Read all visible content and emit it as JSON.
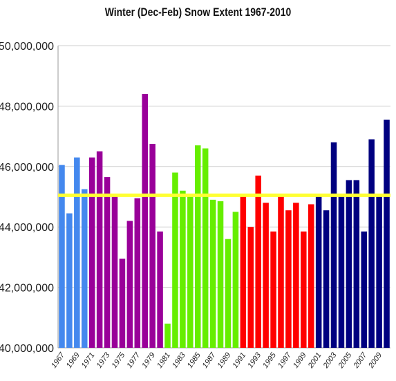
{
  "chart_data": {
    "type": "bar",
    "title": "Winter (Dec-Feb) Snow Extent 1967-2010",
    "xlabel": "",
    "ylabel": "",
    "ylim": [
      40000000,
      50000000
    ],
    "yticks": [
      40000000,
      42000000,
      44000000,
      46000000,
      48000000,
      50000000
    ],
    "ytick_labels": [
      "40,000,000",
      "42,000,000",
      "44,000,000",
      "46,000,000",
      "48,000,000",
      "50,000,000"
    ],
    "grid": true,
    "legend": "none",
    "categories": [
      "1967",
      "1968",
      "1969",
      "1970",
      "1971",
      "1972",
      "1973",
      "1974",
      "1975",
      "1976",
      "1977",
      "1978",
      "1979",
      "1980",
      "1981",
      "1982",
      "1983",
      "1984",
      "1985",
      "1986",
      "1987",
      "1988",
      "1989",
      "1990",
      "1991",
      "1992",
      "1993",
      "1994",
      "1995",
      "1996",
      "1997",
      "1998",
      "1999",
      "2000",
      "2001",
      "2002",
      "2003",
      "2004",
      "2005",
      "2006",
      "2007",
      "2008",
      "2009",
      "2010"
    ],
    "xtick_labels": [
      "1967",
      "1969",
      "1971",
      "1973",
      "1975",
      "1977",
      "1979",
      "1981",
      "1983",
      "1985",
      "1987",
      "1989",
      "1991",
      "1993",
      "1995",
      "1997",
      "1999",
      "2001",
      "2003",
      "2005",
      "2007",
      "2009"
    ],
    "values": [
      46050000,
      44450000,
      46300000,
      45250000,
      46300000,
      46500000,
      45650000,
      45000000,
      42950000,
      44200000,
      44950000,
      48400000,
      46750000,
      43850000,
      40800000,
      45800000,
      45200000,
      45000000,
      46700000,
      46600000,
      44900000,
      44850000,
      43600000,
      44500000,
      45000000,
      44000000,
      45700000,
      44800000,
      43850000,
      45000000,
      44550000,
      44800000,
      43850000,
      44750000,
      45000000,
      44550000,
      46800000,
      45000000,
      45550000,
      45550000,
      43850000,
      46900000,
      45000000,
      47550000
    ],
    "bar_colors": [
      "#4488ee",
      "#4488ee",
      "#4488ee",
      "#4488ee",
      "#990099",
      "#990099",
      "#990099",
      "#990099",
      "#990099",
      "#990099",
      "#990099",
      "#990099",
      "#990099",
      "#990099",
      "#66ee00",
      "#66ee00",
      "#66ee00",
      "#66ee00",
      "#66ee00",
      "#66ee00",
      "#66ee00",
      "#66ee00",
      "#66ee00",
      "#66ee00",
      "#ff0000",
      "#ff0000",
      "#ff0000",
      "#ff0000",
      "#ff0000",
      "#ff0000",
      "#ff0000",
      "#ff0000",
      "#ff0000",
      "#ff0000",
      "#000080",
      "#000080",
      "#000080",
      "#000080",
      "#000080",
      "#000080",
      "#000080",
      "#000080",
      "#000080",
      "#000080"
    ],
    "reference_line": {
      "value": 45050000,
      "color": "#ffff33"
    }
  }
}
